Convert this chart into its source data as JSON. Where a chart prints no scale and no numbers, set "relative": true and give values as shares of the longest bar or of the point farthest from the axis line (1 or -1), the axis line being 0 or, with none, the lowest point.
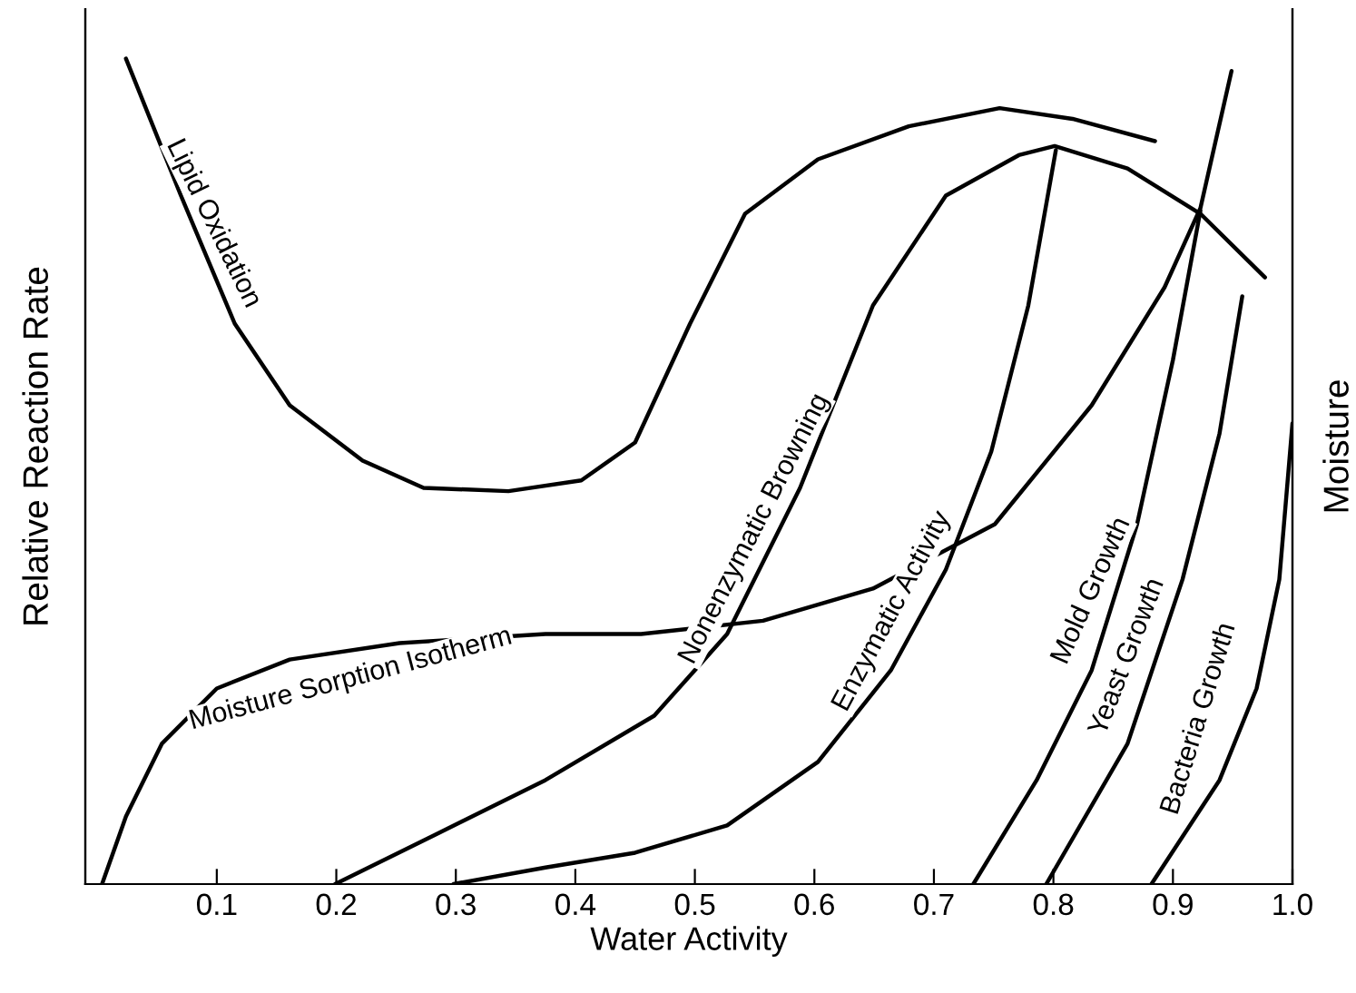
{
  "chart_data": {
    "type": "line",
    "relative": true,
    "xlabel": "Water Activity",
    "ylabel": "Relative Reaction Rate",
    "y2label": "Moisture",
    "xlim": [
      -0.01,
      1.0
    ],
    "xticks": [
      0.1,
      0.2,
      0.3,
      0.4,
      0.5,
      0.6,
      0.7,
      0.8,
      0.9,
      {
        "value": 1.0,
        "label": "1.0"
      }
    ],
    "tick_labels": "x",
    "grid": false,
    "legend": false,
    "marker": "none",
    "line_style": "solid",
    "series": [
      {
        "name": "Lipid Oxidation",
        "color": "#000000",
        "x": [
          0.024,
          0.07,
          0.115,
          0.161,
          0.222,
          0.273,
          0.344,
          0.405,
          0.45,
          0.496,
          0.542,
          0.603,
          0.679,
          0.755,
          0.816,
          0.885
        ],
        "values": [
          1.0,
          0.834,
          0.679,
          0.58,
          0.513,
          0.48,
          0.476,
          0.489,
          0.535,
          0.679,
          0.812,
          0.878,
          0.918,
          0.94,
          0.927,
          0.9
        ]
      },
      {
        "name": "Moisture Sorption Isotherm",
        "color": "#000000",
        "x": [
          0.004,
          0.024,
          0.054,
          0.1,
          0.161,
          0.253,
          0.375,
          0.455,
          0.557,
          0.649,
          0.751,
          0.832,
          0.893,
          0.923,
          0.949
        ],
        "values": [
          0,
          0.082,
          0.17,
          0.237,
          0.272,
          0.292,
          0.303,
          0.303,
          0.319,
          0.358,
          0.436,
          0.58,
          0.723,
          0.819,
          0.985
        ]
      },
      {
        "name": "Nonenzymatic Browning",
        "color": "#000000",
        "x": [
          0.199,
          0.283,
          0.375,
          0.466,
          0.527,
          0.588,
          0.649,
          0.71,
          0.771,
          0.801,
          0.862,
          0.923,
          0.977
        ],
        "values": [
          0,
          0.06,
          0.126,
          0.204,
          0.303,
          0.48,
          0.701,
          0.834,
          0.883,
          0.894,
          0.867,
          0.812,
          0.735
        ]
      },
      {
        "name": "Enzymatic Activity",
        "color": "#000000",
        "x": [
          0.298,
          0.375,
          0.45,
          0.527,
          0.603,
          0.664,
          0.71,
          0.748,
          0.779,
          0.802
        ],
        "values": [
          0,
          0.02,
          0.038,
          0.071,
          0.148,
          0.259,
          0.381,
          0.524,
          0.701,
          0.889
        ]
      },
      {
        "name": "Mold Growth",
        "color": "#000000",
        "x": [
          0.733,
          0.786,
          0.832,
          0.87,
          0.9,
          0.923
        ],
        "values": [
          0,
          0.126,
          0.259,
          0.436,
          0.635,
          0.816
        ]
      },
      {
        "name": "Yeast Growth",
        "color": "#000000",
        "x": [
          0.794,
          0.862,
          0.908,
          0.939,
          0.958
        ],
        "values": [
          0,
          0.17,
          0.369,
          0.546,
          0.712
        ]
      },
      {
        "name": "Bacteria Growth",
        "color": "#000000",
        "x": [
          0.882,
          0.939,
          0.97,
          0.989,
          1.0
        ],
        "values": [
          0,
          0.126,
          0.237,
          0.369,
          0.558
        ]
      }
    ]
  }
}
